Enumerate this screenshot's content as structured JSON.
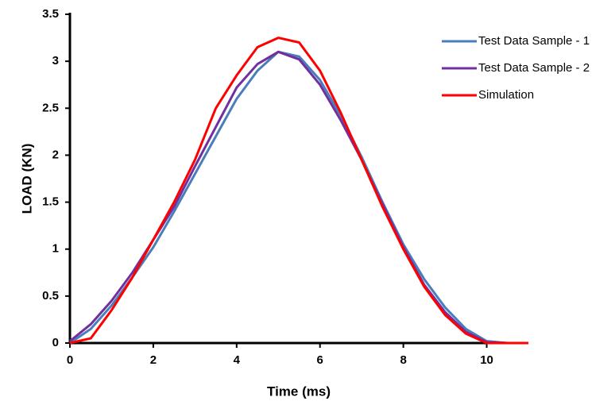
{
  "chart_data": {
    "type": "line",
    "x_label": "Time (ms)",
    "y_label": "LOAD (KN)",
    "x": [
      0,
      0.5,
      1,
      1.5,
      2,
      2.5,
      3,
      3.5,
      4,
      4.5,
      5,
      5.5,
      6,
      6.5,
      7,
      7.5,
      8,
      8.5,
      9,
      9.5,
      10,
      10.5,
      11
    ],
    "series": [
      {
        "name": "Test Data Sample - 1",
        "color": "#4a7ebb",
        "values": [
          0,
          0.15,
          0.4,
          0.7,
          1.02,
          1.4,
          1.8,
          2.2,
          2.6,
          2.9,
          3.1,
          3.05,
          2.8,
          2.42,
          1.98,
          1.5,
          1.05,
          0.68,
          0.38,
          0.15,
          0.02,
          0,
          0
        ]
      },
      {
        "name": "Test Data Sample - 2",
        "color": "#7030a0",
        "values": [
          0.02,
          0.2,
          0.45,
          0.75,
          1.1,
          1.45,
          1.88,
          2.3,
          2.72,
          2.97,
          3.1,
          3.02,
          2.75,
          2.37,
          1.95,
          1.48,
          1.02,
          0.62,
          0.33,
          0.12,
          0.01,
          0,
          0
        ]
      },
      {
        "name": "Simulation",
        "color": "#ff0000",
        "values": [
          0,
          0.05,
          0.35,
          0.7,
          1.1,
          1.5,
          1.95,
          2.5,
          2.85,
          3.15,
          3.25,
          3.2,
          2.9,
          2.45,
          1.95,
          1.45,
          1.0,
          0.6,
          0.3,
          0.1,
          0,
          0,
          0
        ]
      }
    ],
    "xlim": [
      0,
      11
    ],
    "xticks": [
      0,
      2,
      4,
      6,
      8,
      10
    ],
    "ylim": [
      0,
      3.5
    ],
    "yticks": [
      0,
      0.5,
      1,
      1.5,
      2,
      2.5,
      3,
      3.5
    ],
    "legend": "top-right"
  }
}
